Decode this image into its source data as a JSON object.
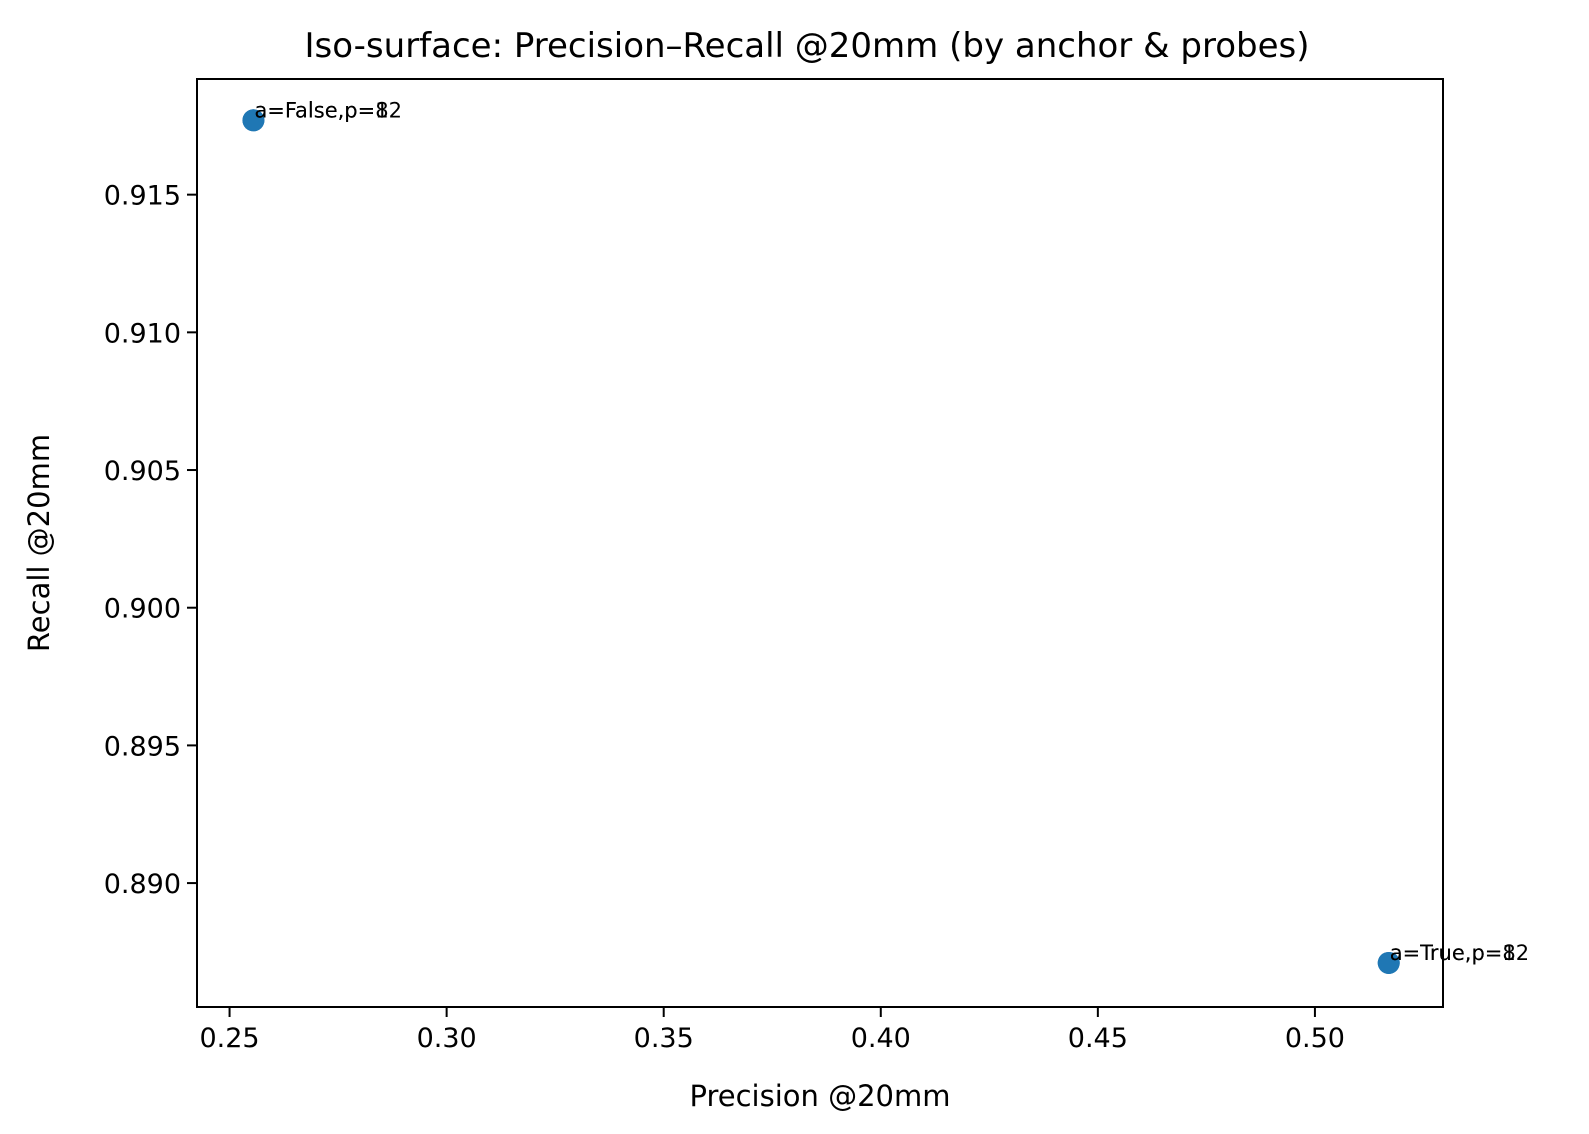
{
  "chart_data": {
    "type": "scatter",
    "title": "Iso-surface: Precision–Recall @20mm (by anchor & probes)",
    "xlabel": "Precision @20mm",
    "ylabel": "Recall @20mm",
    "xlim": [
      0.2425,
      0.5295
    ],
    "ylim": [
      0.8855,
      0.9192
    ],
    "xticks": [
      0.25,
      0.3,
      0.35,
      0.4,
      0.45,
      0.5
    ],
    "xtick_labels": [
      "0.25",
      "0.30",
      "0.35",
      "0.40",
      "0.45",
      "0.50"
    ],
    "yticks": [
      0.89,
      0.895,
      0.9,
      0.905,
      0.91,
      0.915
    ],
    "ytick_labels": [
      "0.890",
      "0.895",
      "0.900",
      "0.905",
      "0.910",
      "0.915"
    ],
    "grid": false,
    "point_color": "#1f77b4",
    "points": [
      {
        "x": 0.2555,
        "y": 0.9177,
        "label": "a=False,p=8"
      },
      {
        "x": 0.2555,
        "y": 0.9177,
        "label": "a=False,p=12"
      },
      {
        "x": 0.517,
        "y": 0.8871,
        "label": "a=True,p=8"
      },
      {
        "x": 0.517,
        "y": 0.8871,
        "label": "a=True,p=12"
      }
    ]
  }
}
